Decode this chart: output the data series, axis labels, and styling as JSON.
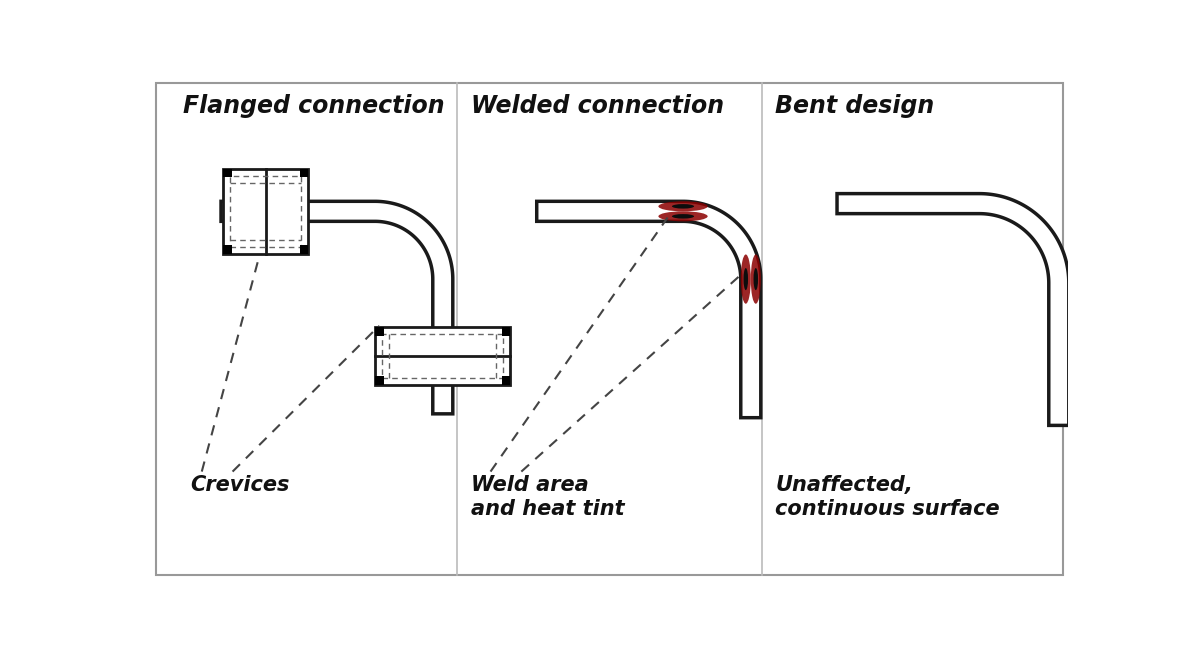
{
  "title1": "Flanged connection",
  "title2": "Welded connection",
  "title3": "Bent design",
  "label1": "Crevices",
  "label2": "Weld area\nand heat tint",
  "label3": "Unaffected,\ncontinuous surface",
  "bg_color": "#ffffff",
  "border_color": "#999999",
  "tube_edge": "#1a1a1a",
  "text_color": "#111111",
  "title_fontsize": 17,
  "label_fontsize": 15,
  "div_color": "#bbbbbb",
  "weld_red": "#8b0000",
  "weld_dark": "#0d0d0d"
}
